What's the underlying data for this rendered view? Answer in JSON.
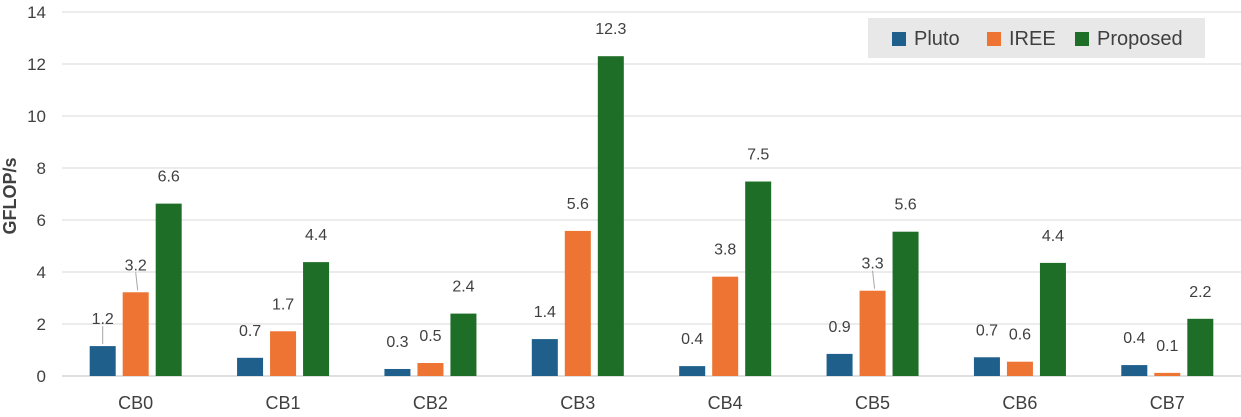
{
  "chart_data": {
    "type": "bar",
    "title": "",
    "xlabel": "",
    "ylabel": "GFLOP/s",
    "ylim": [
      0,
      14
    ],
    "yticks": [
      0,
      2,
      4,
      6,
      8,
      10,
      12,
      14
    ],
    "grid": true,
    "legend_position": "top-right",
    "categories": [
      "CB0",
      "CB1",
      "CB2",
      "CB3",
      "CB4",
      "CB5",
      "CB6",
      "CB7"
    ],
    "series": [
      {
        "name": "Pluto",
        "color": "#1f5f8b",
        "values": [
          1.15,
          0.7,
          0.27,
          1.42,
          0.38,
          0.85,
          0.72,
          0.42
        ],
        "labels": [
          "1.2",
          "0.7",
          "0.3",
          "1.4",
          "0.4",
          "0.9",
          "0.7",
          "0.4"
        ]
      },
      {
        "name": "IREE",
        "color": "#ed7432",
        "values": [
          3.22,
          1.72,
          0.5,
          5.58,
          3.82,
          3.28,
          0.55,
          0.12
        ],
        "labels": [
          "3.2",
          "1.7",
          "0.5",
          "5.6",
          "3.8",
          "3.3",
          "0.6",
          "0.1"
        ]
      },
      {
        "name": "Proposed",
        "color": "#1e6e27",
        "values": [
          6.63,
          4.38,
          2.4,
          12.3,
          7.48,
          5.55,
          4.35,
          2.2
        ],
        "labels": [
          "6.6",
          "4.4",
          "2.4",
          "12.3",
          "7.5",
          "5.6",
          "4.4",
          "2.2"
        ]
      }
    ]
  }
}
